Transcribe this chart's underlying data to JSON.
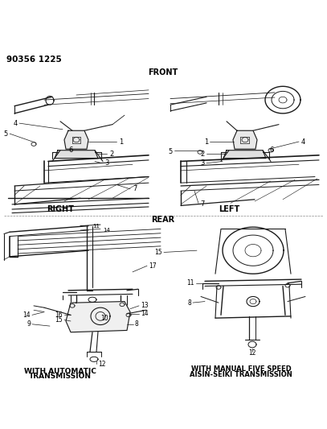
{
  "title": "90356 1225",
  "background_color": "#ffffff",
  "line_color": "#1a1a1a",
  "text_color": "#000000",
  "figsize": [
    4.07,
    5.33
  ],
  "dpi": 100,
  "labels": {
    "front": "FRONT",
    "rear": "REAR",
    "right": "RIGHT",
    "left": "LEFT",
    "auto_trans_1": "WITH AUTOMATIC",
    "auto_trans_2": "TRANSMISSION",
    "manual_trans_1": "WITH MANUAL FIVE SPEED",
    "manual_trans_2": "AISIN-SEIKI TRANSMISSION"
  }
}
